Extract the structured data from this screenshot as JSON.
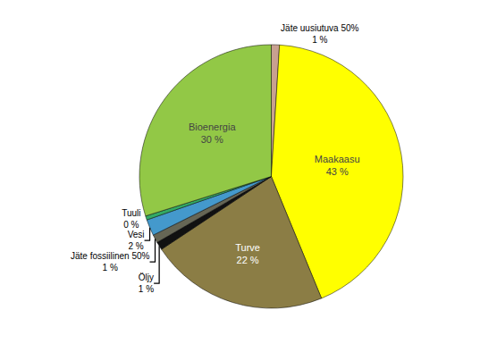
{
  "chart_data": {
    "type": "pie",
    "categories": [
      "Jäte uusiutuva 50%",
      "Maakaasu",
      "Turve",
      "Öljy",
      "Jäte fossiilinen 50%",
      "Vesi",
      "Tuuli",
      "Bioenergia"
    ],
    "values": [
      1,
      43,
      22,
      1,
      1,
      2,
      0.5,
      30
    ],
    "value_labels": [
      "1 %",
      "43 %",
      "22 %",
      "1 %",
      "1 %",
      "2 %",
      "0 %",
      "30 %"
    ],
    "colors": [
      "#C8A090",
      "#FFFF00",
      "#8B7D45",
      "#111111",
      "#666655",
      "#4499CC",
      "#33AA66",
      "#92C846"
    ],
    "data_labels": true
  }
}
